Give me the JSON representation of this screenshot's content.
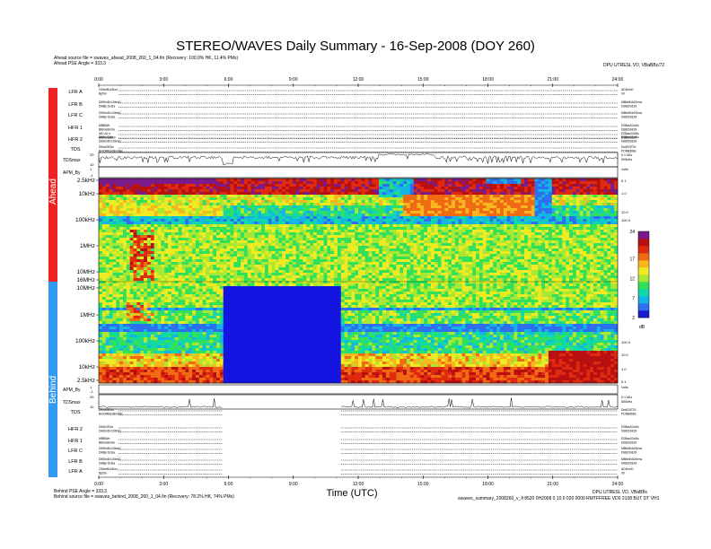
{
  "header": {
    "title": "STEREO/WAVES Daily Summary - 16-Sep-2008 (DOY 260)",
    "ahead_source": "Ahead source file = swaves_ahead_2008_260_1_04.fin (Recovery: 100.0% HK, 11.4% PMs)",
    "ahead_pse": "Ahead PSE Angle = 333.3",
    "top_right_note": "DPU UTRESL VD, VBaBBc/72"
  },
  "footer": {
    "behind_pse": "Behind PSE Angle = 333.3",
    "behind_source": "Behind source file = swaves_behind_2008_260_1_04.fin (Recovery: 78.2% HK, 74% PMs)",
    "bottom_right_1": "DPU UTRESL VD, VBaBBc",
    "bottom_right_2": "swaves_summary_2008260_v_fi 8520 0H2008 0 10.0 020 0000 RMTFFREE VD0 2108 BUT DT VH1"
  },
  "time_ticks": [
    "0:00",
    "3:00",
    "6:00",
    "9:00",
    "12:00",
    "15:00",
    "18:00",
    "21:00",
    "24:00"
  ],
  "time_label": "Time (UTC)",
  "side_labels": {
    "ahead": "Ahead",
    "behind": "Behind"
  },
  "ahead_rows": [
    {
      "label": "LFR A",
      "left": [
        "ODbellUnDon",
        "Bp5m"
      ],
      "right": [
        "ADDrmD",
        "00"
      ]
    },
    {
      "label": "LFR B",
      "left": [
        "DBSmDv10bmC",
        "DBBy Dclsa"
      ],
      "right": [
        "MBbbEdi20rms",
        "DBEDSEDI"
      ]
    },
    {
      "label": "LFR C",
      "left": [
        "DBSmDv10bmC",
        "DBBy Dclsa"
      ],
      "right": [
        "MBbbEdi20rms",
        "DBEDSEDI"
      ]
    },
    {
      "label": "HFR 1",
      "left": [
        "MBBWn",
        "BBmeBm0e",
        "AB UU n",
        "BBmDaBm0"
      ],
      "right": [
        "E2Bas02cBo",
        "DBEDSEDI",
        "E2Bas02cBo",
        "DBEDSEDI"
      ]
    },
    {
      "label": "HFR 2",
      "left": [
        "DBUUEUn",
        "DBSmDv10bmC"
      ],
      "right": [
        "E2Bas02cBo",
        "DBEDSEDI"
      ]
    },
    {
      "label": "TDS",
      "left": [
        "DBmSEDlc",
        "BmDMBssBm0Bc"
      ],
      "right": [
        "DmEDITDI",
        "PDMBDBE"
      ]
    }
  ],
  "behind_rows": [
    {
      "label": "TDS",
      "left": [
        "DBmSEDlc",
        "BmDMBssBm0Bc"
      ],
      "right": [
        "DmEDITDI",
        "PDMBDBE"
      ]
    },
    {
      "label": "HFR 2",
      "left": [
        "DBUUEUn",
        "DBSmDv10bmC"
      ],
      "right": [
        "E2Bas02cBo",
        "DBEDSEDI"
      ]
    },
    {
      "label": "HFR 1",
      "left": [
        "MBBWn",
        "BBmeBm0e"
      ],
      "right": [
        "E2Bas02cBo",
        "DBEDSEDI"
      ]
    },
    {
      "label": "LFR C",
      "left": [
        "DBSmDv10bmC",
        "DBBy Dclsa"
      ],
      "right": [
        "MBbbEdi20rms",
        "DBEDSEDI"
      ]
    },
    {
      "label": "LFR B",
      "left": [
        "DBSmDv10bmC",
        "DBBy Dclsa"
      ],
      "right": [
        "MBbbEdi20rms",
        "DBEDSEDI"
      ]
    },
    {
      "label": "LFR A",
      "left": [
        "ODbellUnDon",
        "Bp5m"
      ],
      "right": [
        "ADDrmD",
        "00"
      ]
    }
  ],
  "tdsmax_ahead": {
    "label": "TDSmax",
    "tick_hi": "20",
    "tick_lo": "10",
    "right": [
      "0.1 kEs",
      "500kHz"
    ]
  },
  "apm_ahead": {
    "label": "APM_By",
    "tick_hi": "1",
    "tick_lo": "-1",
    "right": "Volts"
  },
  "apm_behind": {
    "label": "APM_By",
    "tick_hi": "1",
    "tick_lo": "-1",
    "right": "Volts"
  },
  "tdsmax_behind": {
    "label": "TDSmax",
    "tick_hi": "20",
    "tick_lo": "10",
    "right": [
      "0.1 kEs",
      "500kHz"
    ]
  },
  "freq_ticks_ahead": [
    "2.5kHz",
    "10kHz",
    "100kHz",
    "1MHz",
    "10MHz"
  ],
  "freq_ticks_behind": [
    "16MHz",
    "10MHz",
    "1MHz",
    "100kHz",
    "10kHz",
    "2.5kHz"
  ],
  "right_axis_ahead": [
    "0.1",
    "1.0",
    "10.0",
    "100.0"
  ],
  "right_axis_behind": [
    "100.0",
    "10.0",
    "1.0",
    "0.1"
  ],
  "colorbar": {
    "ticks": [
      "24",
      "17",
      "12",
      "7",
      "2"
    ],
    "unit": "dB"
  },
  "colors": {
    "ahead_bar": "#ee2222",
    "behind_bar": "#3399ee",
    "palette": [
      "#1a1ad0",
      "#2e6ff0",
      "#14b4e6",
      "#10d8a8",
      "#33e05a",
      "#a8e832",
      "#f0ea22",
      "#f7b51e",
      "#f06a14",
      "#e02a10",
      "#b81010",
      "#7a1a8c"
    ],
    "gap": "#1414e0"
  },
  "chart_data": {
    "type": "heatmap",
    "title": "STEREO/WAVES Daily Summary - 16-Sep-2008 (DOY 260)",
    "xlabel": "Time (UTC)",
    "x_range_hours": [
      0,
      24
    ],
    "panels": [
      {
        "name": "Ahead",
        "y_range": [
          "2.5kHz",
          "16MHz"
        ],
        "scale": "log"
      },
      {
        "name": "Behind",
        "y_range": [
          "16MHz",
          "2.5kHz"
        ],
        "scale": "log",
        "data_gap_hours": [
          5.7,
          11.2
        ]
      }
    ],
    "colorbar": {
      "ticks": [
        24,
        17,
        12,
        7,
        2
      ],
      "unit": "dB"
    }
  }
}
